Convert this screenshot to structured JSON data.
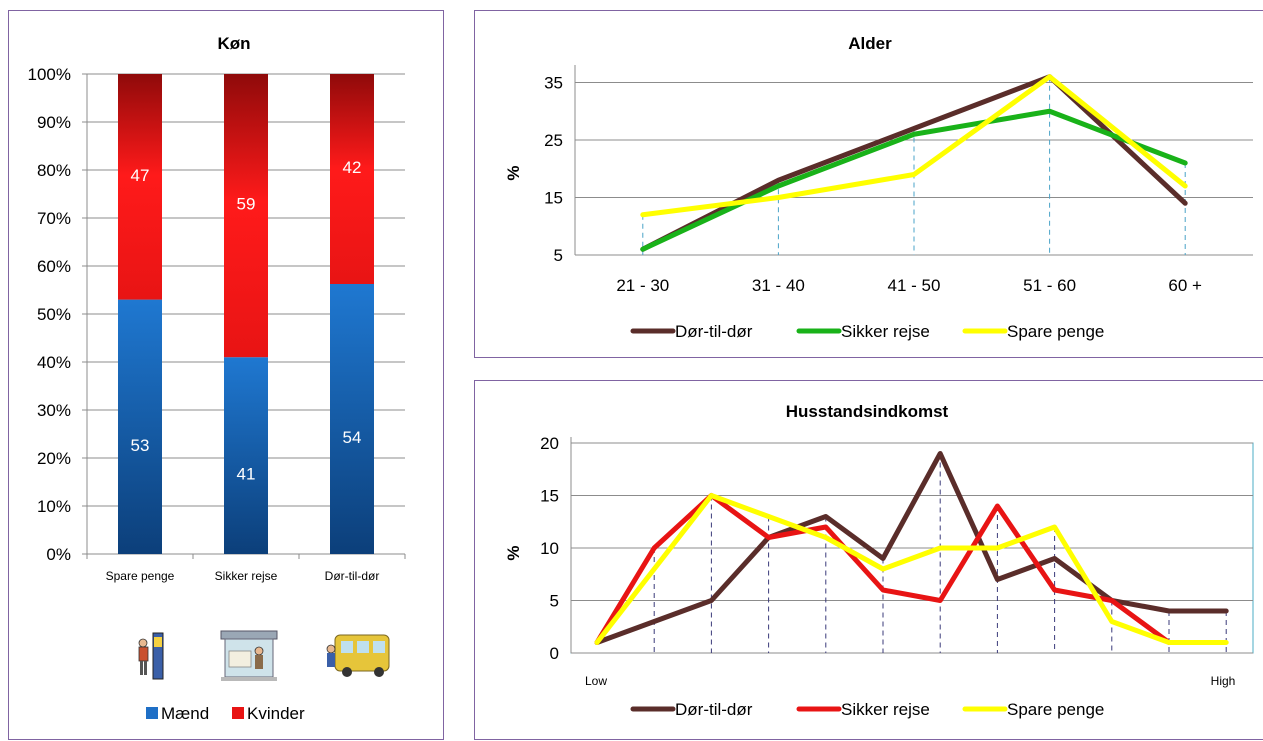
{
  "charts": [
    {
      "title": "Køn",
      "chart_data": {
        "type": "bar",
        "stacked": true,
        "percent_stacked": true,
        "title": "Køn",
        "categories": [
          "Spare penge",
          "Sikker rejse",
          "Dør-til-dør"
        ],
        "series": [
          {
            "name": "Mænd",
            "values": [
              53,
              41,
              54
            ],
            "color": "#1f6fc6"
          },
          {
            "name": "Kvinder",
            "values": [
              47,
              59,
              42
            ],
            "color": "#e81414"
          }
        ],
        "y_ticks": [
          "0%",
          "10%",
          "20%",
          "30%",
          "40%",
          "50%",
          "60%",
          "70%",
          "80%",
          "90%",
          "100%"
        ],
        "ylim": [
          0,
          100
        ],
        "grid": true,
        "legend": "bottom"
      },
      "pictograms": [
        "person-with-ticket-machine-icon",
        "bus-stop-shelter-icon",
        "person-boarding-bus-icon"
      ]
    },
    {
      "title": "Alder",
      "chart_data": {
        "type": "line",
        "title": "Alder",
        "ylabel": "%",
        "categories": [
          "21 - 30",
          "31 - 40",
          "41 - 50",
          "51 - 60",
          "60 +"
        ],
        "series": [
          {
            "name": "Dør-til-dør",
            "values": [
              6,
              18,
              27,
              36,
              14
            ],
            "color": "#5a2d2a"
          },
          {
            "name": "Sikker rejse",
            "values": [
              6,
              17,
              26,
              30,
              21
            ],
            "color": "#19b219"
          },
          {
            "name": "Spare penge",
            "values": [
              12,
              15,
              19,
              36,
              17
            ],
            "color": "#ffff00"
          }
        ],
        "y_ticks": [
          5,
          15,
          25,
          35
        ],
        "ylim": [
          5,
          37
        ],
        "grid": true,
        "legend": "bottom"
      }
    },
    {
      "title": "Husstandsindkomst",
      "chart_data": {
        "type": "line",
        "title": "Husstandsindkomst",
        "ylabel": "%",
        "x_endpoint_labels": [
          "Low",
          "High"
        ],
        "points": 12,
        "series": [
          {
            "name": "Dør-til-dør",
            "values": [
              1,
              3,
              5,
              11,
              13,
              9,
              19,
              7,
              9,
              5,
              4,
              4
            ],
            "color": "#5a2d2a"
          },
          {
            "name": "Sikker rejse",
            "values": [
              1,
              10,
              15,
              11,
              12,
              6,
              5,
              14,
              6,
              5,
              1,
              null
            ],
            "color": "#e81414"
          },
          {
            "name": "Spare penge",
            "values": [
              1,
              8,
              15,
              13,
              11,
              8,
              10,
              10,
              12,
              3,
              1,
              1
            ],
            "color": "#ffff00"
          }
        ],
        "y_ticks": [
          0,
          5,
          10,
          15,
          20
        ],
        "ylim": [
          0,
          20
        ],
        "grid": true,
        "legend": "bottom"
      }
    }
  ]
}
